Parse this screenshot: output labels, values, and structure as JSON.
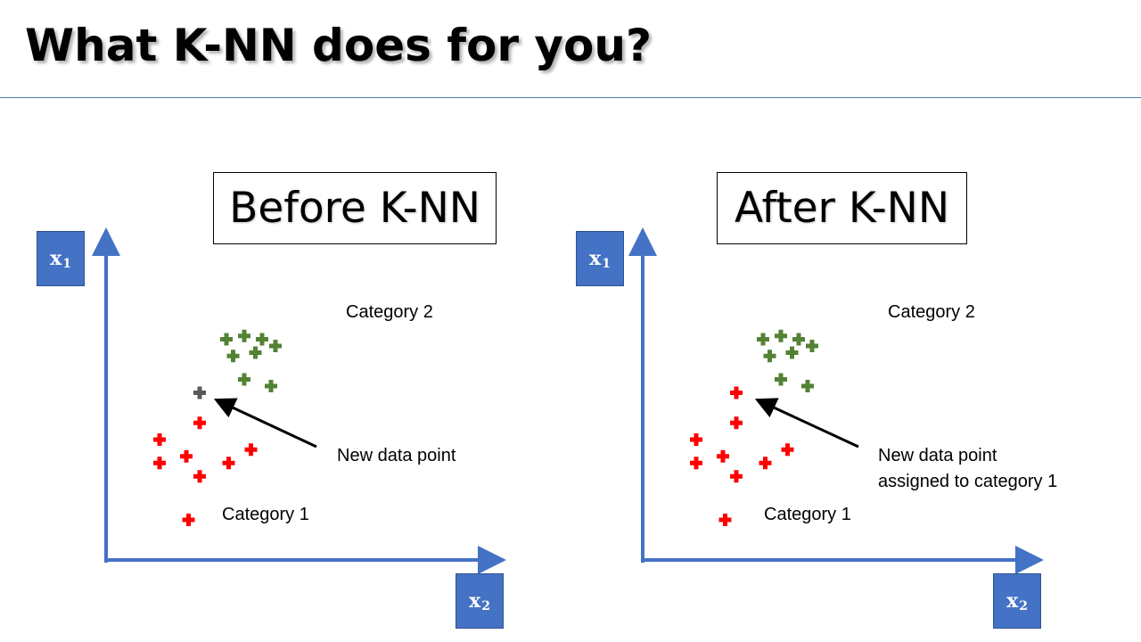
{
  "slide": {
    "title": "What K-NN does for you?"
  },
  "axis": {
    "y_var": "x",
    "y_sub": "1",
    "x_var": "x",
    "x_sub": "2"
  },
  "panels": [
    {
      "title": "Before K-NN",
      "category2_label": "Category 2",
      "category1_label": "Category 1",
      "new_point_label_lines": [
        "New data point"
      ]
    },
    {
      "title": "After K-NN",
      "category2_label": "Category 2",
      "category1_label": "Category 1",
      "new_point_label_lines": [
        "New data point",
        "assigned to category 1"
      ]
    }
  ],
  "colors": {
    "axis": "#4472c4",
    "category1": "#ff0000",
    "category2": "#548235",
    "unassigned": "#595959",
    "arrow": "#000000"
  },
  "chart_data": [
    {
      "type": "scatter",
      "title": "Before K-NN",
      "xlabel": "x2",
      "ylabel": "x1",
      "series": [
        {
          "name": "Category 2",
          "color": "#548235",
          "points": [
            [
              2.7,
              6.6
            ],
            [
              3.1,
              6.7
            ],
            [
              3.5,
              6.6
            ],
            [
              3.8,
              6.4
            ],
            [
              2.85,
              6.1
            ],
            [
              3.35,
              6.2
            ],
            [
              3.1,
              5.4
            ],
            [
              3.7,
              5.2
            ]
          ]
        },
        {
          "name": "Category 1",
          "color": "#ff0000",
          "points": [
            [
              1.2,
              3.6
            ],
            [
              1.2,
              2.9
            ],
            [
              1.8,
              3.1
            ],
            [
              2.1,
              4.1
            ],
            [
              2.1,
              2.5
            ],
            [
              2.75,
              2.9
            ],
            [
              3.25,
              3.3
            ],
            [
              1.85,
              1.2
            ]
          ]
        },
        {
          "name": "New data point",
          "color": "#595959",
          "points": [
            [
              2.1,
              5.0
            ]
          ]
        }
      ]
    },
    {
      "type": "scatter",
      "title": "After K-NN",
      "xlabel": "x2",
      "ylabel": "x1",
      "series": [
        {
          "name": "Category 2",
          "color": "#548235",
          "points": [
            [
              2.7,
              6.6
            ],
            [
              3.1,
              6.7
            ],
            [
              3.5,
              6.6
            ],
            [
              3.8,
              6.4
            ],
            [
              2.85,
              6.1
            ],
            [
              3.35,
              6.2
            ],
            [
              3.1,
              5.4
            ],
            [
              3.7,
              5.2
            ]
          ]
        },
        {
          "name": "Category 1",
          "color": "#ff0000",
          "points": [
            [
              1.2,
              3.6
            ],
            [
              1.2,
              2.9
            ],
            [
              1.8,
              3.1
            ],
            [
              2.1,
              4.1
            ],
            [
              2.1,
              2.5
            ],
            [
              2.75,
              2.9
            ],
            [
              3.25,
              3.3
            ],
            [
              1.85,
              1.2
            ],
            [
              2.1,
              5.0
            ]
          ]
        }
      ]
    }
  ]
}
